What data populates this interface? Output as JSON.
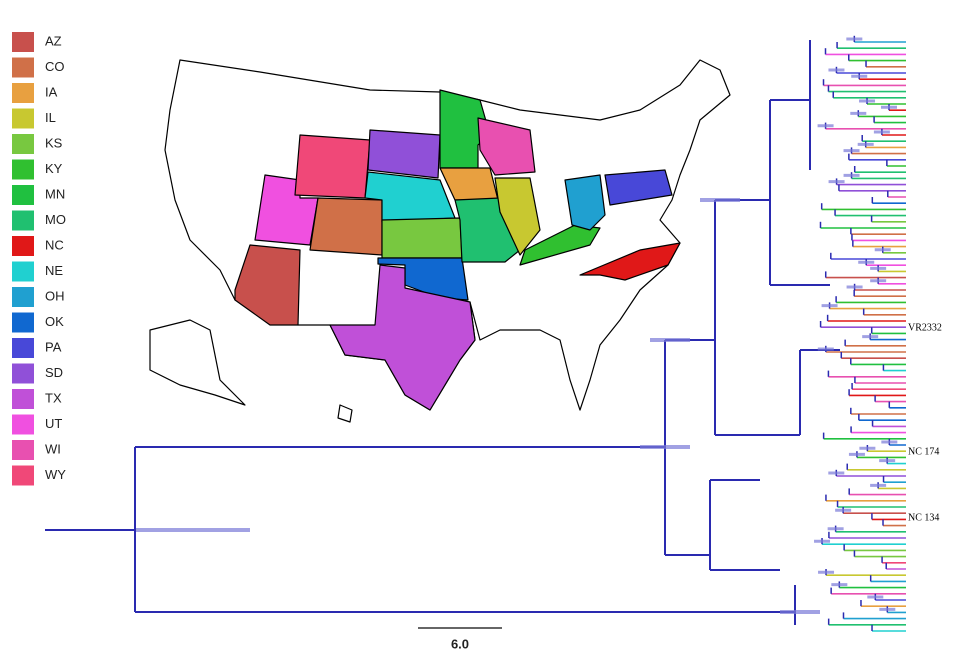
{
  "legend": [
    {
      "label": "AZ",
      "color": "#c8504c"
    },
    {
      "label": "CO",
      "color": "#d07048"
    },
    {
      "label": "IA",
      "color": "#e8a040"
    },
    {
      "label": "IL",
      "color": "#c8c830"
    },
    {
      "label": "KS",
      "color": "#78c840"
    },
    {
      "label": "KY",
      "color": "#30c030"
    },
    {
      "label": "MN",
      "color": "#20c040"
    },
    {
      "label": "MO",
      "color": "#20c070"
    },
    {
      "label": "NC",
      "color": "#e01818"
    },
    {
      "label": "NE",
      "color": "#20d0d0"
    },
    {
      "label": "OH",
      "color": "#20a0d0"
    },
    {
      "label": "OK",
      "color": "#1068d0"
    },
    {
      "label": "PA",
      "color": "#4848d8"
    },
    {
      "label": "SD",
      "color": "#9050d8"
    },
    {
      "label": "TX",
      "color": "#c050d8"
    },
    {
      "label": "UT",
      "color": "#f050e0"
    },
    {
      "label": "WI",
      "color": "#e850b0"
    },
    {
      "label": "WY",
      "color": "#f04878"
    }
  ],
  "tree_labels": [
    "VR2332",
    "NC 174",
    "NC 134"
  ],
  "scale_bar": "6.0"
}
